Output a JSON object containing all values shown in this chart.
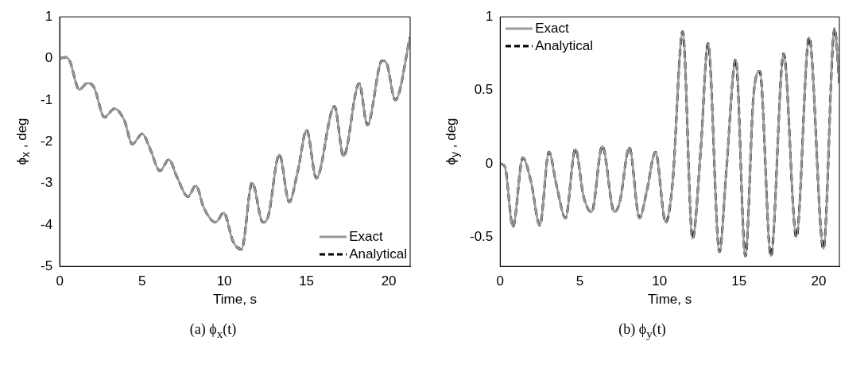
{
  "chart_data": [
    {
      "type": "line",
      "title": "(a) ϕ$_{x}$(t)",
      "xlabel": "Time, s",
      "ylabel": "ϕ$_{x}$ , deg",
      "x": [
        0,
        0.38,
        0.6,
        1.19,
        1.68,
        2.08,
        2.72,
        3.33,
        3.93,
        4.41,
        5.02,
        5.46,
        6.1,
        6.63,
        7.15,
        7.79,
        8.28,
        8.76,
        9.48,
        9.97,
        10.53,
        11.05,
        11.7,
        12.35,
        12.67,
        13.35,
        13.95,
        14.48,
        15.01,
        15.6,
        16.7,
        17.25,
        18.2,
        18.7,
        19.6,
        19.85,
        20.4,
        21.3
      ],
      "series": [
        {
          "name": "Exact",
          "color": "#999999",
          "line_style": "solid",
          "values": [
            0,
            0.03,
            -0.05,
            -0.75,
            -0.59,
            -0.69,
            -1.41,
            -1.21,
            -1.49,
            -2.06,
            -1.81,
            -2.14,
            -2.7,
            -2.43,
            -2.87,
            -3.32,
            -3.06,
            -3.59,
            -3.94,
            -3.71,
            -4.39,
            -4.59,
            -2.99,
            -3.94,
            -3.8,
            -2.31,
            -3.45,
            -2.69,
            -1.72,
            -2.88,
            -1.15,
            -2.35,
            -0.6,
            -1.6,
            -0.05,
            -0.1,
            -1.0,
            0.52
          ]
        },
        {
          "name": "Analytical",
          "color": "#000000",
          "line_style": "dashed",
          "values": [
            0,
            0.03,
            -0.05,
            -0.75,
            -0.59,
            -0.69,
            -1.41,
            -1.21,
            -1.49,
            -2.06,
            -1.81,
            -2.14,
            -2.7,
            -2.43,
            -2.87,
            -3.32,
            -3.06,
            -3.59,
            -3.94,
            -3.71,
            -4.39,
            -4.59,
            -2.99,
            -3.94,
            -3.8,
            -2.31,
            -3.45,
            -2.69,
            -1.72,
            -2.88,
            -1.15,
            -2.35,
            -0.6,
            -1.6,
            -0.05,
            -0.1,
            -1.0,
            0.52
          ]
        }
      ],
      "xlim": [
        0,
        21.3
      ],
      "xticks": [
        0,
        5,
        10,
        15,
        20
      ],
      "ylim": [
        -5,
        1
      ],
      "yticks": [
        -5,
        -4,
        -3,
        -2,
        -1,
        0,
        1
      ],
      "grid": false,
      "legend": "bottom right"
    },
    {
      "type": "line",
      "title": "(b) ϕ$_{y}$(t)",
      "xlabel": "Time, s",
      "ylabel": "ϕ$_{y}$ , deg",
      "x": [
        0,
        0.29,
        0.8,
        1.42,
        1.93,
        2.49,
        3.06,
        3.54,
        4.1,
        4.72,
        5.23,
        5.74,
        6.41,
        7.17,
        7.51,
        8.11,
        8.75,
        9.2,
        9.75,
        10.39,
        10.81,
        11.46,
        12.08,
        12.59,
        13.05,
        13.77,
        14.2,
        14.79,
        15.4,
        15.9,
        16.3,
        17.0,
        17.8,
        18.6,
        19.4,
        20.3,
        21.0,
        21.3
      ],
      "series": [
        {
          "name": "Exact",
          "color": "#999999",
          "line_style": "solid",
          "values": [
            0,
            -0.02,
            -0.43,
            0.04,
            -0.12,
            -0.42,
            0.08,
            -0.15,
            -0.37,
            0.1,
            -0.22,
            -0.33,
            0.12,
            -0.33,
            -0.26,
            0.11,
            -0.37,
            -0.19,
            0.08,
            -0.4,
            -0.15,
            0.9,
            -0.51,
            0.09,
            0.82,
            -0.6,
            -0.05,
            0.71,
            -0.63,
            0.45,
            0.63,
            -0.63,
            0.75,
            -0.5,
            0.86,
            -0.58,
            0.92,
            0.55
          ]
        },
        {
          "name": "Analytical",
          "color": "#000000",
          "line_style": "dashed",
          "values": [
            0,
            -0.02,
            -0.43,
            0.04,
            -0.12,
            -0.42,
            0.08,
            -0.15,
            -0.37,
            0.1,
            -0.22,
            -0.33,
            0.12,
            -0.33,
            -0.26,
            0.11,
            -0.37,
            -0.19,
            0.08,
            -0.4,
            -0.15,
            0.9,
            -0.51,
            0.09,
            0.82,
            -0.6,
            -0.05,
            0.71,
            -0.63,
            0.45,
            0.63,
            -0.63,
            0.75,
            -0.5,
            0.86,
            -0.58,
            0.92,
            0.55
          ]
        }
      ],
      "xlim": [
        0,
        21.3
      ],
      "xticks": [
        0,
        5,
        10,
        15,
        20
      ],
      "ylim": [
        -0.7,
        1
      ],
      "yticks": [
        -0.5,
        0,
        0.5,
        1
      ],
      "grid": false,
      "legend": "top left"
    }
  ]
}
